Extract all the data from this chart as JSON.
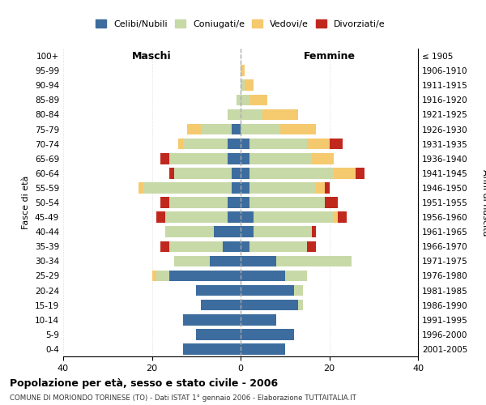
{
  "age_groups": [
    "0-4",
    "5-9",
    "10-14",
    "15-19",
    "20-24",
    "25-29",
    "30-34",
    "35-39",
    "40-44",
    "45-49",
    "50-54",
    "55-59",
    "60-64",
    "65-69",
    "70-74",
    "75-79",
    "80-84",
    "85-89",
    "90-94",
    "95-99",
    "100+"
  ],
  "birth_years": [
    "2001-2005",
    "1996-2000",
    "1991-1995",
    "1986-1990",
    "1981-1985",
    "1976-1980",
    "1971-1975",
    "1966-1970",
    "1961-1965",
    "1956-1960",
    "1951-1955",
    "1946-1950",
    "1941-1945",
    "1936-1940",
    "1931-1935",
    "1926-1930",
    "1921-1925",
    "1916-1920",
    "1911-1915",
    "1906-1910",
    "≤ 1905"
  ],
  "maschi": {
    "celibi": [
      13,
      10,
      13,
      9,
      10,
      16,
      7,
      4,
      6,
      3,
      3,
      2,
      2,
      3,
      3,
      2,
      0,
      0,
      0,
      0,
      0
    ],
    "coniugati": [
      0,
      0,
      0,
      0,
      0,
      3,
      8,
      12,
      11,
      14,
      13,
      20,
      13,
      13,
      10,
      7,
      3,
      1,
      0,
      0,
      0
    ],
    "vedovi": [
      0,
      0,
      0,
      0,
      0,
      1,
      0,
      0,
      0,
      0,
      0,
      1,
      0,
      0,
      1,
      3,
      0,
      0,
      0,
      0,
      0
    ],
    "divorziati": [
      0,
      0,
      0,
      0,
      0,
      0,
      0,
      2,
      0,
      2,
      2,
      0,
      1,
      2,
      0,
      0,
      0,
      0,
      0,
      0,
      0
    ]
  },
  "femmine": {
    "nubili": [
      10,
      12,
      8,
      13,
      12,
      10,
      8,
      2,
      3,
      3,
      2,
      2,
      2,
      2,
      2,
      0,
      0,
      0,
      0,
      0,
      0
    ],
    "coniugate": [
      0,
      0,
      0,
      1,
      2,
      5,
      17,
      13,
      13,
      18,
      17,
      15,
      19,
      14,
      13,
      9,
      5,
      2,
      1,
      0,
      0
    ],
    "vedove": [
      0,
      0,
      0,
      0,
      0,
      0,
      0,
      0,
      0,
      1,
      0,
      2,
      5,
      5,
      5,
      8,
      8,
      4,
      2,
      1,
      0
    ],
    "divorziate": [
      0,
      0,
      0,
      0,
      0,
      0,
      0,
      2,
      1,
      2,
      3,
      1,
      2,
      0,
      3,
      0,
      0,
      0,
      0,
      0,
      0
    ]
  },
  "colors": {
    "celibi_nubili": "#3d6d9e",
    "coniugati": "#c8d9a8",
    "vedovi": "#f5c96e",
    "divorziati": "#c0281e"
  },
  "xlim": 40,
  "title": "Popolazione per età, sesso e stato civile - 2006",
  "subtitle": "COMUNE DI MORIONDO TORINESE (TO) - Dati ISTAT 1° gennaio 2006 - Elaborazione TUTTAITALIA.IT",
  "ylabel_left": "Fasce di età",
  "ylabel_right": "Anni di nascita",
  "xlabel_maschi": "Maschi",
  "xlabel_femmine": "Femmine"
}
